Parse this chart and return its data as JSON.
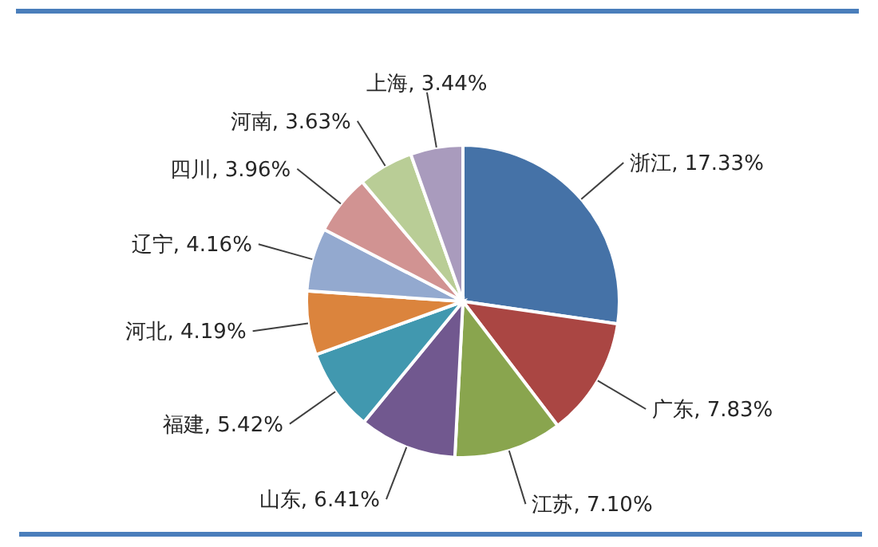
{
  "chart_data": {
    "type": "pie",
    "categories": [
      "浙江",
      "广东",
      "江苏",
      "山东",
      "福建",
      "河北",
      "辽宁",
      "四川",
      "河南",
      "上海"
    ],
    "values": [
      17.33,
      7.83,
      7.1,
      6.41,
      5.42,
      4.19,
      4.16,
      3.96,
      3.63,
      3.44
    ],
    "value_labels": [
      "17.33%",
      "7.83%",
      "7.10%",
      "6.41%",
      "5.42%",
      "4.19%",
      "4.16%",
      "3.96%",
      "3.63%",
      "3.44%"
    ],
    "colors": [
      "#4572a7",
      "#aa4643",
      "#89a54e",
      "#71588f",
      "#4198af",
      "#db843d",
      "#93a9cf",
      "#d19392",
      "#b9cd96",
      "#a99bbd"
    ]
  }
}
